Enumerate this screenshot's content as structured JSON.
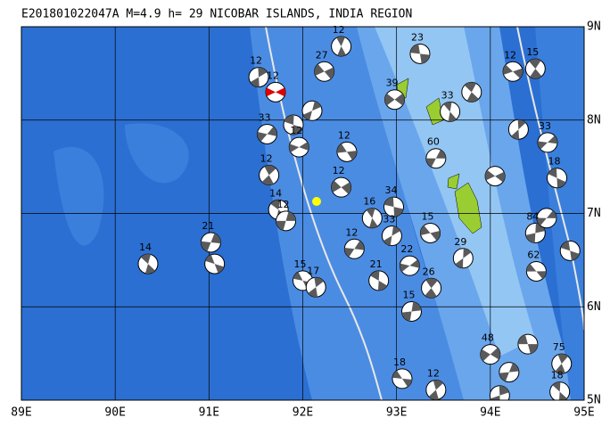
{
  "map": {
    "title": "E201801022047A M=4.9 h= 29 NICOBAR ISLANDS, INDIA REGION",
    "lon_ticks": [
      {
        "value": 89,
        "label": "89E"
      },
      {
        "value": 90,
        "label": "90E"
      },
      {
        "value": 91,
        "label": "91E"
      },
      {
        "value": 92,
        "label": "92E"
      },
      {
        "value": 93,
        "label": "93E"
      },
      {
        "value": 94,
        "label": "94E"
      },
      {
        "value": 95,
        "label": "95E"
      }
    ],
    "lat_ticks": [
      {
        "value": 9,
        "label": "9N"
      },
      {
        "value": 8,
        "label": "8N"
      },
      {
        "value": 7,
        "label": "7N"
      },
      {
        "value": 6,
        "label": "6N"
      },
      {
        "value": 5,
        "label": "5N"
      }
    ],
    "events": [
      {
        "lon": 91.71,
        "lat": 8.3,
        "depth": 12,
        "main": true
      },
      {
        "lon": 90.35,
        "lat": 6.46,
        "depth": 14
      },
      {
        "lon": 91.02,
        "lat": 6.69,
        "depth": 21
      },
      {
        "lon": 91.06,
        "lat": 6.46
      },
      {
        "lon": 91.53,
        "lat": 8.46,
        "depth": 12
      },
      {
        "lon": 92.23,
        "lat": 8.52,
        "depth": 27
      },
      {
        "lon": 92.41,
        "lat": 8.79,
        "depth": 12
      },
      {
        "lon": 91.62,
        "lat": 7.85,
        "depth": 33
      },
      {
        "lon": 91.9,
        "lat": 7.95
      },
      {
        "lon": 92.1,
        "lat": 8.1
      },
      {
        "lon": 92.47,
        "lat": 7.66,
        "depth": 12
      },
      {
        "lon": 91.64,
        "lat": 7.41,
        "depth": 12
      },
      {
        "lon": 91.96,
        "lat": 7.71,
        "depth": 12
      },
      {
        "lon": 91.74,
        "lat": 7.04,
        "depth": 14
      },
      {
        "lon": 91.82,
        "lat": 6.92,
        "depth": 12
      },
      {
        "lon": 92.0,
        "lat": 6.28,
        "depth": 15
      },
      {
        "lon": 92.14,
        "lat": 6.21,
        "depth": 17
      },
      {
        "lon": 92.41,
        "lat": 7.28,
        "depth": 12
      },
      {
        "lon": 92.74,
        "lat": 6.95,
        "depth": 16
      },
      {
        "lon": 92.55,
        "lat": 6.62,
        "depth": 12
      },
      {
        "lon": 92.97,
        "lat": 7.07,
        "depth": 34
      },
      {
        "lon": 92.95,
        "lat": 6.76,
        "depth": 33
      },
      {
        "lon": 93.36,
        "lat": 6.79,
        "depth": 15
      },
      {
        "lon": 93.37,
        "lat": 6.2,
        "depth": 26
      },
      {
        "lon": 93.14,
        "lat": 6.44,
        "depth": 22
      },
      {
        "lon": 92.81,
        "lat": 6.28,
        "depth": 21
      },
      {
        "lon": 93.16,
        "lat": 5.95,
        "depth": 15
      },
      {
        "lon": 93.06,
        "lat": 5.23,
        "depth": 18
      },
      {
        "lon": 93.42,
        "lat": 5.11,
        "depth": 12
      },
      {
        "lon": 92.98,
        "lat": 8.22,
        "depth": 39
      },
      {
        "lon": 93.57,
        "lat": 8.09,
        "depth": 33
      },
      {
        "lon": 93.42,
        "lat": 7.59,
        "depth": 60
      },
      {
        "lon": 93.25,
        "lat": 8.71,
        "depth": 23
      },
      {
        "lon": 93.71,
        "lat": 6.52,
        "depth": 29
      },
      {
        "lon": 94.24,
        "lat": 8.52,
        "depth": 12
      },
      {
        "lon": 94.48,
        "lat": 8.55,
        "depth": 15
      },
      {
        "lon": 94.61,
        "lat": 7.76,
        "depth": 33
      },
      {
        "lon": 94.71,
        "lat": 7.38,
        "depth": 18
      },
      {
        "lon": 94.48,
        "lat": 6.79,
        "depth": 84
      },
      {
        "lon": 94.49,
        "lat": 6.38,
        "depth": 62
      },
      {
        "lon": 94.76,
        "lat": 5.39,
        "depth": 75
      },
      {
        "lon": 94.0,
        "lat": 5.49,
        "depth": 48
      },
      {
        "lon": 94.74,
        "lat": 5.09,
        "depth": 18
      },
      {
        "lon": 94.2,
        "lat": 5.3
      },
      {
        "lon": 94.4,
        "lat": 5.6
      },
      {
        "lon": 94.3,
        "lat": 7.9
      },
      {
        "lon": 94.05,
        "lat": 7.4
      },
      {
        "lon": 93.8,
        "lat": 8.3
      },
      {
        "lon": 94.6,
        "lat": 6.95
      },
      {
        "lon": 94.85,
        "lat": 6.6
      },
      {
        "lon": 94.1,
        "lat": 5.05
      }
    ]
  }
}
